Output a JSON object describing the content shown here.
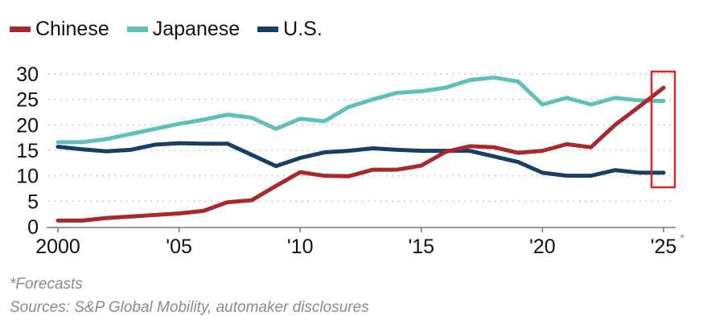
{
  "chart_data": {
    "type": "line",
    "title": "",
    "xlabel": "",
    "ylabel": "",
    "x": [
      2000,
      2001,
      2002,
      2003,
      2004,
      2005,
      2006,
      2007,
      2008,
      2009,
      2010,
      2011,
      2012,
      2013,
      2014,
      2015,
      2016,
      2017,
      2018,
      2019,
      2020,
      2021,
      2022,
      2023,
      2024,
      2025
    ],
    "xlim": [
      2000,
      2025
    ],
    "ylim": [
      0,
      30
    ],
    "yticks": [
      "0",
      "5",
      "10",
      "15",
      "20",
      "25",
      "30"
    ],
    "xticks": [
      {
        "value": 2000,
        "label": "2000"
      },
      {
        "value": 2005,
        "label": "'05"
      },
      {
        "value": 2010,
        "label": "'10"
      },
      {
        "value": 2015,
        "label": "'15"
      },
      {
        "value": 2020,
        "label": "'20"
      },
      {
        "value": 2025,
        "label": "'25"
      }
    ],
    "forecast_marker": "*",
    "grid": "horizontal dotted",
    "legend_placement": "top-left",
    "highlight": {
      "x": 2025,
      "color": "#d9262b"
    },
    "series": [
      {
        "name": "Chinese",
        "color": "#a8282e",
        "values": [
          1.2,
          1.2,
          1.7,
          2.0,
          2.3,
          2.6,
          3.1,
          4.8,
          5.2,
          8.0,
          10.7,
          10.0,
          9.9,
          11.2,
          11.2,
          12.0,
          14.7,
          15.8,
          15.6,
          14.5,
          14.9,
          16.2,
          15.6,
          20.0,
          23.6,
          27.3
        ]
      },
      {
        "name": "Japanese",
        "color": "#5fbfb9",
        "values": [
          16.6,
          16.6,
          17.2,
          18.2,
          19.2,
          20.2,
          21.0,
          22.0,
          21.4,
          19.2,
          21.2,
          20.7,
          23.5,
          25.0,
          26.3,
          26.6,
          27.3,
          28.8,
          29.3,
          28.5,
          24.0,
          25.3,
          24.0,
          25.3,
          24.8,
          24.7
        ]
      },
      {
        "name": "U.S.",
        "color": "#173f63",
        "values": [
          15.7,
          15.2,
          14.8,
          15.1,
          16.1,
          16.4,
          16.3,
          16.3,
          14.1,
          11.9,
          13.5,
          14.6,
          14.9,
          15.4,
          15.1,
          14.9,
          14.9,
          14.9,
          13.8,
          12.7,
          10.6,
          10.0,
          10.0,
          11.1,
          10.6,
          10.6
        ]
      }
    ]
  },
  "footnotes": {
    "forecasts": "*Forecasts",
    "sources": "Sources: S&P Global Mobility, automaker disclosures"
  }
}
